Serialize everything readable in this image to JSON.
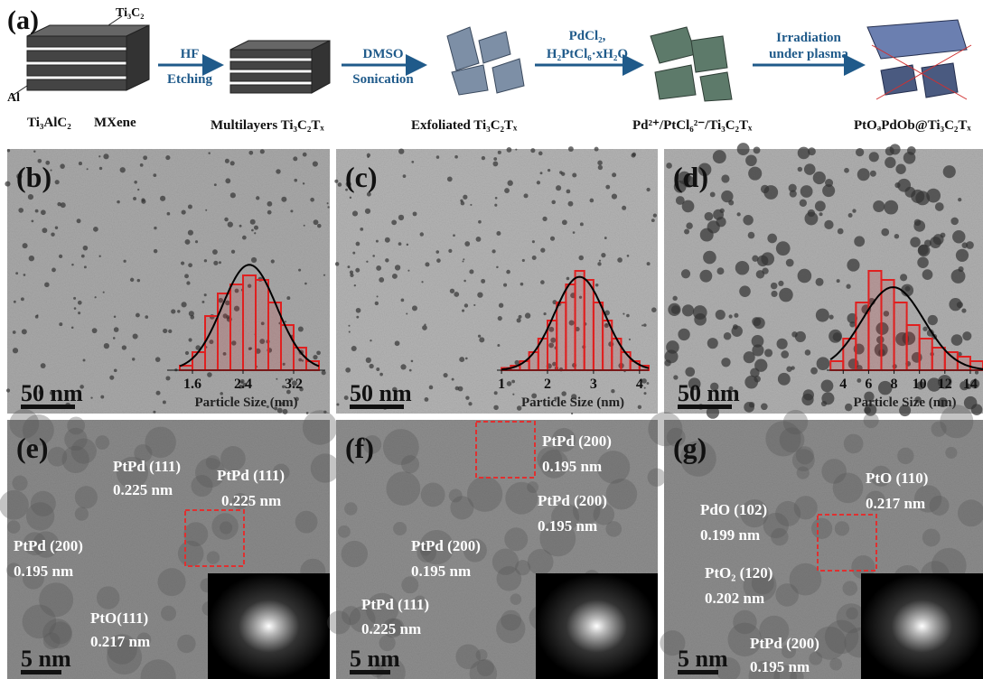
{
  "scheme": {
    "label": "(a)",
    "top_labels": [
      "Ti₃C₂",
      "Al"
    ],
    "steps": [
      {
        "top": "HF",
        "bottom": "Etching"
      },
      {
        "top": "DMSO",
        "bottom": "Sonication"
      },
      {
        "top": "PdCl₂,",
        "bottom": "H₂PtCl₆·xH₂O"
      },
      {
        "top": "Irradiation",
        "bottom": "under plasma"
      }
    ],
    "captions": [
      "Ti₃AlC₂",
      "MXene",
      "Multilayers Ti₃C₂Tₓ",
      "Exfoliated Ti₃C₂Tₓ",
      "Pd²⁺/PtCl₆²⁻/Ti₃C₂Tₓ",
      "PtOₐPdOb@Ti₃C₂Tₓ"
    ]
  },
  "panels": [
    {
      "label": "(b)",
      "scale_bar": "50 nm",
      "histogram": {
        "bins": [
          1.4,
          1.6,
          1.8,
          2.0,
          2.2,
          2.4,
          2.6,
          2.8,
          3.0,
          3.2,
          3.4,
          3.6
        ],
        "counts": [
          1,
          4,
          12,
          17,
          19,
          21,
          20,
          15,
          10,
          5,
          2
        ],
        "color": "#e02020",
        "xlim": [
          1.2,
          3.7
        ],
        "xticks": [
          1.6,
          2.4,
          3.2
        ],
        "ylim": [
          0,
          25
        ],
        "xlabel": "Particle Size (nm)"
      }
    },
    {
      "label": "(c)",
      "scale_bar": "50 nm",
      "histogram": {
        "bins": [
          1.0,
          1.2,
          1.4,
          1.6,
          1.8,
          2.0,
          2.2,
          2.4,
          2.6,
          2.8,
          3.0,
          3.2,
          3.4,
          3.6,
          3.8,
          4.0,
          4.2
        ],
        "counts": [
          0.5,
          1,
          2,
          4,
          7,
          11,
          15,
          19,
          22,
          20,
          15,
          11,
          7,
          4,
          2,
          1
        ],
        "color": "#e02020",
        "xlim": [
          0.9,
          4.2
        ],
        "xticks": [
          1,
          2,
          3,
          4
        ],
        "ylim": [
          0,
          25
        ],
        "xlabel": "Particle Size (nm)"
      }
    },
    {
      "label": "(d)",
      "scale_bar": "50 nm",
      "histogram": {
        "bins": [
          3,
          4,
          5,
          6,
          7,
          8,
          9,
          10,
          11,
          12,
          13,
          14,
          15
        ],
        "counts": [
          2,
          7,
          15,
          22,
          20,
          15,
          10,
          7,
          5,
          4,
          3,
          2
        ],
        "color": "#e02020",
        "xlim": [
          2.7,
          15
        ],
        "xticks": [
          4,
          6,
          8,
          10,
          12,
          14
        ],
        "ylim": [
          0,
          25
        ],
        "xlabel": "Particle Size (nm)"
      }
    },
    {
      "label": "(e)",
      "scale_bar": "5 nm",
      "annotations": [
        [
          "PtPd (111)",
          "0.225 nm"
        ],
        [
          "PtPd (111)",
          "0.225 nm"
        ],
        [
          "PtPd (200)",
          "0.195 nm"
        ],
        [
          "PtO(111)",
          "0.217 nm"
        ]
      ]
    },
    {
      "label": "(f)",
      "scale_bar": "5 nm",
      "annotations": [
        [
          "PtPd (200)",
          "0.195 nm"
        ],
        [
          "PtPd (200)",
          "0.195 nm"
        ],
        [
          "PtPd (200)",
          "0.195 nm"
        ],
        [
          "PtPd (111)",
          "0.225 nm"
        ]
      ]
    },
    {
      "label": "(g)",
      "scale_bar": "5 nm",
      "annotations": [
        [
          "PdO (102)",
          "0.199 nm"
        ],
        [
          "PtO (110)",
          "0.217 nm"
        ],
        [
          "PtO₂ (120)",
          "0.202 nm"
        ],
        [
          "PtPd (200)",
          "0.195 nm"
        ]
      ]
    }
  ]
}
